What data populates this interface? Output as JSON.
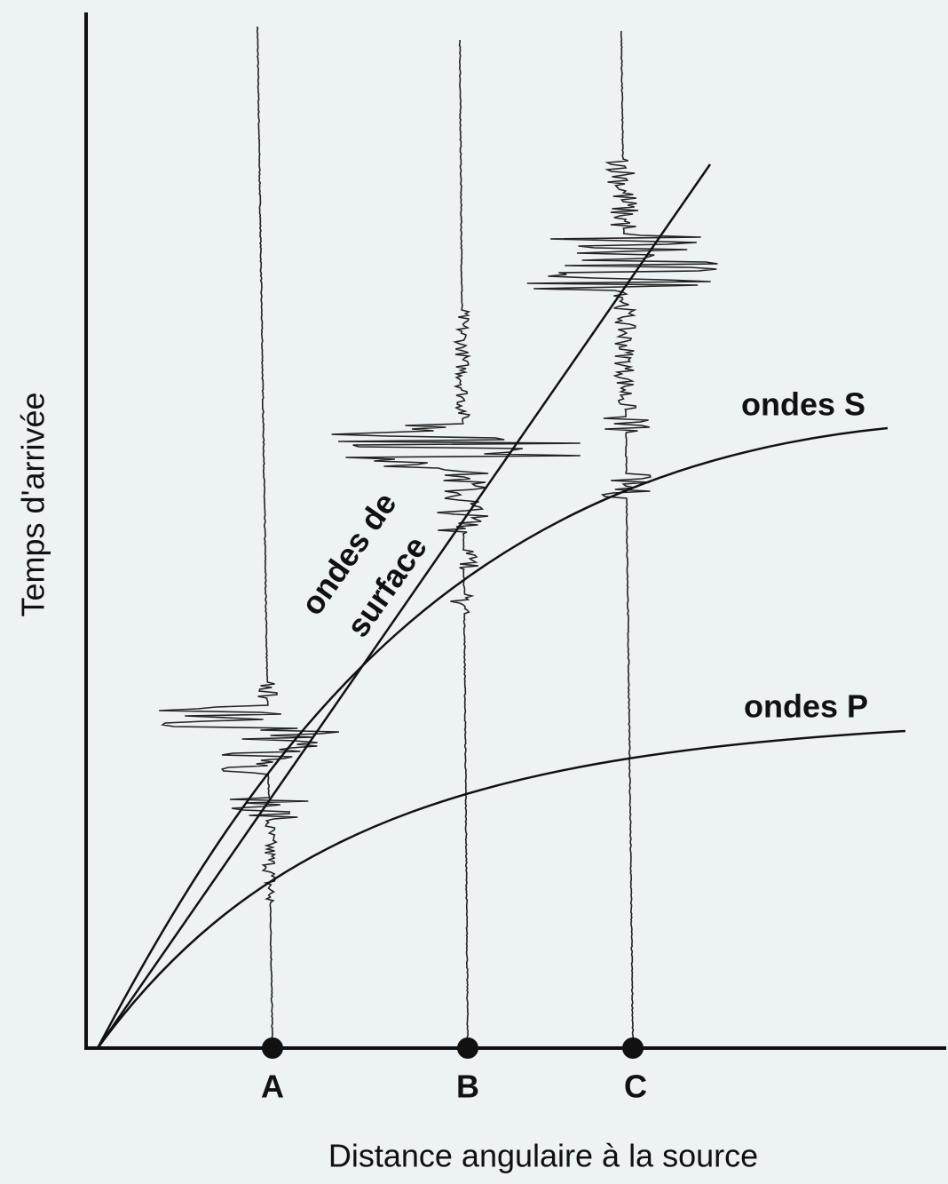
{
  "y_axis_label": "Temps d'arrivée",
  "x_axis_label": "Distance angulaire à la source",
  "stations": [
    "A",
    "B",
    "C"
  ],
  "curves": {
    "s_waves": "ondes S",
    "p_waves": "ondes P",
    "surface_waves": [
      "ondes de",
      "surface"
    ]
  }
}
